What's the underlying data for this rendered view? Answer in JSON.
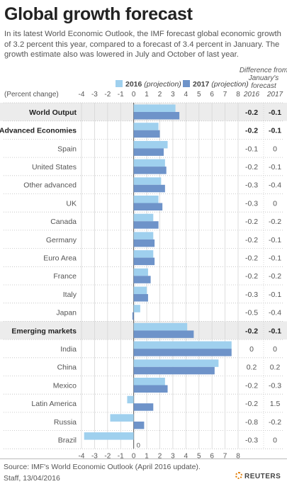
{
  "title": "Global growth forecast",
  "subtitle": "In its latest World Economic Outlook, the IMF forecast global economic growth of 3.2 percent this year, compared to a forecast of 3.4 percent in January. The growth estimate also was lowered in July and October of last year.",
  "source": "Source: IMF's World Economic Outlook (April 2016 update).",
  "credit": "Staff, 13/04/2016",
  "brand": "REUTERS",
  "chart_data": {
    "type": "bar",
    "orientation": "horizontal",
    "unit_label": "(Percent change)",
    "xlim": [
      -4,
      8
    ],
    "ticks": [
      "-4",
      "-3",
      "-2",
      "-1",
      "0",
      "1",
      "2",
      "3",
      "4",
      "5",
      "6",
      "7",
      "8"
    ],
    "grid": true,
    "legend": {
      "placement": "top",
      "entries": [
        {
          "year": "2016",
          "note": "(projection)",
          "color": "#9fd0ee"
        },
        {
          "year": "2017",
          "note": "(projection)",
          "color": "#6e93c9"
        }
      ]
    },
    "diff_header": "Difference from January's forecast",
    "diff_cols": [
      "2016",
      "2017"
    ],
    "categories": [
      {
        "label": "World Output",
        "bold": true,
        "shaded": true,
        "v2016": 3.2,
        "v2017": 3.5,
        "d2016": "-0.2",
        "d2017": "-0.1"
      },
      {
        "label": "Advanced Economies",
        "bold": true,
        "shaded": false,
        "v2016": 1.9,
        "v2017": 2.0,
        "d2016": "-0.2",
        "d2017": "-0.1"
      },
      {
        "label": "Spain",
        "bold": false,
        "shaded": false,
        "v2016": 2.6,
        "v2017": 2.3,
        "d2016": "-0.1",
        "d2017": "0"
      },
      {
        "label": "United States",
        "bold": false,
        "shaded": false,
        "v2016": 2.4,
        "v2017": 2.5,
        "d2016": "-0.2",
        "d2017": "-0.1"
      },
      {
        "label": "Other advanced",
        "bold": false,
        "shaded": false,
        "v2016": 2.1,
        "v2017": 2.4,
        "d2016": "-0.3",
        "d2017": "-0.4"
      },
      {
        "label": "UK",
        "bold": false,
        "shaded": false,
        "v2016": 1.9,
        "v2017": 2.2,
        "d2016": "-0.3",
        "d2017": "0"
      },
      {
        "label": "Canada",
        "bold": false,
        "shaded": false,
        "v2016": 1.5,
        "v2017": 1.9,
        "d2016": "-0.2",
        "d2017": "-0.2"
      },
      {
        "label": "Germany",
        "bold": false,
        "shaded": false,
        "v2016": 1.5,
        "v2017": 1.6,
        "d2016": "-0.2",
        "d2017": "-0.1"
      },
      {
        "label": "Euro Area",
        "bold": false,
        "shaded": false,
        "v2016": 1.5,
        "v2017": 1.6,
        "d2016": "-0.2",
        "d2017": "-0.1"
      },
      {
        "label": "France",
        "bold": false,
        "shaded": false,
        "v2016": 1.1,
        "v2017": 1.3,
        "d2016": "-0.2",
        "d2017": "-0.2"
      },
      {
        "label": "Italy",
        "bold": false,
        "shaded": false,
        "v2016": 1.0,
        "v2017": 1.1,
        "d2016": "-0.3",
        "d2017": "-0.1"
      },
      {
        "label": "Japan",
        "bold": false,
        "shaded": false,
        "v2016": 0.5,
        "v2017": -0.1,
        "d2016": "-0.5",
        "d2017": "-0.4"
      },
      {
        "label": "Emerging markets",
        "bold": true,
        "shaded": true,
        "v2016": 4.1,
        "v2017": 4.6,
        "d2016": "-0.2",
        "d2017": "-0.1"
      },
      {
        "label": "India",
        "bold": false,
        "shaded": false,
        "v2016": 7.5,
        "v2017": 7.5,
        "d2016": "0",
        "d2017": "0"
      },
      {
        "label": "China",
        "bold": false,
        "shaded": false,
        "v2016": 6.5,
        "v2017": 6.2,
        "d2016": "0.2",
        "d2017": "0.2"
      },
      {
        "label": "Mexico",
        "bold": false,
        "shaded": false,
        "v2016": 2.4,
        "v2017": 2.6,
        "d2016": "-0.2",
        "d2017": "-0.3"
      },
      {
        "label": "Latin America",
        "bold": false,
        "shaded": false,
        "v2016": -0.5,
        "v2017": 1.5,
        "d2016": "-0.2",
        "d2017": "1.5"
      },
      {
        "label": "Russia",
        "bold": false,
        "shaded": false,
        "v2016": -1.8,
        "v2017": 0.8,
        "d2016": "-0.8",
        "d2017": "-0.2"
      },
      {
        "label": "Brazil",
        "bold": false,
        "shaded": false,
        "v2016": -3.8,
        "v2017": 0.0,
        "d2016": "-0.3",
        "d2017": "0"
      }
    ],
    "zero_annotation": "0"
  }
}
